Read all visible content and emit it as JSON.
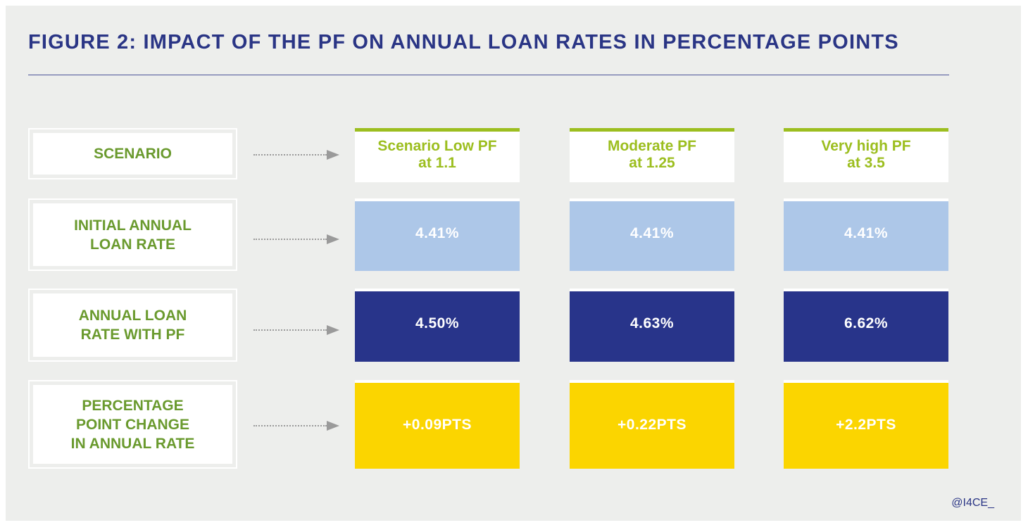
{
  "title": "FIGURE 2: IMPACT OF THE PF ON ANNUAL LOAN RATES IN PERCENTAGE POINTS",
  "row_labels": {
    "scenario": "SCENARIO",
    "initial": "INITIAL ANNUAL\nLOAN RATE",
    "with_pf": "ANNUAL LOAN\nRATE WITH PF",
    "change": "PERCENTAGE\nPOINT CHANGE\nIN ANNUAL RATE"
  },
  "scenarios": [
    {
      "name": "Scenario Low PF\nat 1.1",
      "initial": "4.41%",
      "with_pf": "4.50%",
      "change": "+0.09PTS"
    },
    {
      "name": "Moderate PF\nat 1.25",
      "initial": "4.41%",
      "with_pf": "4.63%",
      "change": "+0.22PTS"
    },
    {
      "name": "Very high PF\nat 3.5",
      "initial": "4.41%",
      "with_pf": "6.62%",
      "change": "+2.2PTS"
    }
  ],
  "credit": "@I4CE_",
  "colors": {
    "title": "#2a3585",
    "label_text": "#6a9a2e",
    "scenario_accent": "#9cbe1f",
    "initial_fill": "#adc7e8",
    "with_pf_fill": "#28348a",
    "change_fill": "#fbd500"
  }
}
